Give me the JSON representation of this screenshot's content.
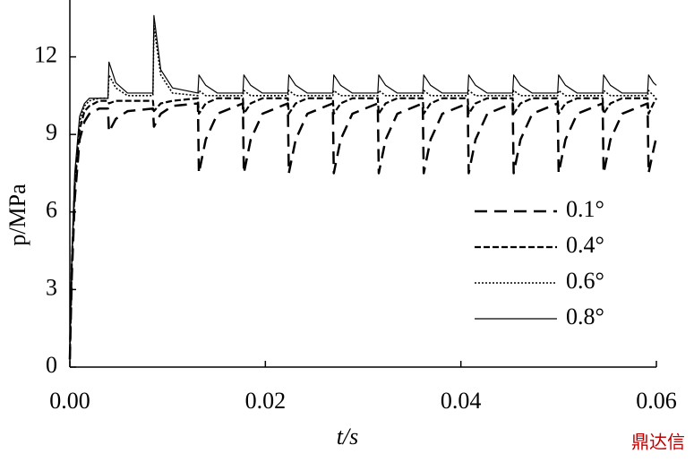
{
  "chart_data": {
    "type": "line",
    "xlabel": "t/s",
    "ylabel": "p/MPa",
    "watermark": "鼎达信",
    "xlim": [
      0,
      0.06
    ],
    "ylim": [
      0,
      14.2
    ],
    "xticks": [
      {
        "value": 0,
        "label": "0.00"
      },
      0.02,
      0.04,
      0.06
    ],
    "yticks": [
      0,
      3,
      6,
      9,
      12
    ],
    "legend": "right",
    "x": [
      0,
      0.0002,
      0.0005,
      0.001,
      0.0015,
      0.002,
      0.003,
      0.0039,
      0.004,
      0.0047,
      0.0059,
      0.0085,
      0.0086,
      0.0093,
      0.0105,
      0.0131,
      0.0132,
      0.0139,
      0.0151,
      0.0177,
      0.0178,
      0.0185,
      0.0197,
      0.0223,
      0.0224,
      0.0231,
      0.0243,
      0.0269,
      0.027,
      0.0277,
      0.0289,
      0.0315,
      0.0316,
      0.0323,
      0.0335,
      0.0361,
      0.0362,
      0.0369,
      0.0381,
      0.0407,
      0.0408,
      0.0415,
      0.0427,
      0.0453,
      0.0454,
      0.0461,
      0.0473,
      0.0499,
      0.05,
      0.0507,
      0.0519,
      0.0545,
      0.0546,
      0.0553,
      0.0565,
      0.0591,
      0.0592,
      0.0597,
      0.06
    ],
    "series": [
      {
        "name": "0.1°",
        "color": "#000000",
        "dash": "14,8",
        "width": 2.5,
        "values": [
          0.3,
          3.5,
          6.5,
          8.8,
          9.5,
          9.8,
          10.0,
          10.0,
          9.1,
          9.6,
          9.9,
          10.0,
          9.3,
          9.8,
          10.1,
          10.2,
          7.5,
          8.8,
          9.8,
          10.2,
          7.5,
          8.8,
          9.8,
          10.2,
          7.5,
          8.8,
          9.8,
          10.2,
          7.5,
          8.8,
          9.8,
          10.2,
          7.5,
          8.8,
          9.8,
          10.2,
          7.5,
          8.8,
          9.8,
          10.2,
          7.5,
          8.8,
          9.8,
          10.2,
          7.5,
          8.8,
          9.8,
          10.2,
          7.5,
          8.8,
          9.8,
          10.2,
          7.5,
          8.8,
          9.8,
          10.2,
          7.5,
          8.4,
          8.9
        ]
      },
      {
        "name": "0.4°",
        "color": "#000000",
        "dash": "7,3",
        "width": 2.2,
        "values": [
          0.3,
          4,
          7,
          9.2,
          9.9,
          10.1,
          10.3,
          10.3,
          10.2,
          10.3,
          10.3,
          10.3,
          9.9,
          10.2,
          10.3,
          10.4,
          9.8,
          10.2,
          10.4,
          10.4,
          9.8,
          10.2,
          10.4,
          10.4,
          9.8,
          10.2,
          10.4,
          10.4,
          9.8,
          10.2,
          10.4,
          10.4,
          9.8,
          10.2,
          10.4,
          10.4,
          9.8,
          10.2,
          10.4,
          10.4,
          9.8,
          10.2,
          10.4,
          10.4,
          9.8,
          10.2,
          10.4,
          10.4,
          9.8,
          10.2,
          10.4,
          10.4,
          9.8,
          10.2,
          10.4,
          10.4,
          9.8,
          10.2,
          10.4
        ]
      },
      {
        "name": "0.6°",
        "color": "#000000",
        "dash": "2,2",
        "width": 1.6,
        "values": [
          0.3,
          4,
          7.2,
          9.5,
          10.1,
          10.3,
          10.4,
          10.4,
          11.3,
          10.8,
          10.5,
          10.5,
          13.2,
          11.3,
          10.6,
          10.5,
          10.7,
          10.5,
          10.5,
          10.5,
          10.7,
          10.5,
          10.5,
          10.5,
          10.7,
          10.5,
          10.5,
          10.5,
          10.7,
          10.5,
          10.5,
          10.5,
          10.7,
          10.5,
          10.5,
          10.5,
          10.7,
          10.5,
          10.5,
          10.5,
          10.7,
          10.5,
          10.5,
          10.5,
          10.7,
          10.5,
          10.5,
          10.5,
          10.7,
          10.5,
          10.5,
          10.5,
          10.7,
          10.5,
          10.5,
          10.5,
          10.7,
          10.5,
          10.5
        ]
      },
      {
        "name": "0.8°",
        "color": "#000000",
        "width": 1.2,
        "values": [
          0.3,
          4.2,
          7.5,
          9.7,
          10.2,
          10.4,
          10.4,
          10.4,
          11.8,
          11.0,
          10.6,
          10.6,
          13.6,
          11.5,
          10.8,
          10.6,
          11.3,
          10.9,
          10.6,
          10.6,
          11.3,
          10.9,
          10.6,
          10.6,
          11.3,
          10.9,
          10.6,
          10.6,
          11.3,
          10.9,
          10.6,
          10.6,
          11.3,
          10.9,
          10.6,
          10.6,
          11.3,
          10.9,
          10.6,
          10.6,
          11.3,
          10.9,
          10.6,
          10.6,
          11.3,
          10.9,
          10.6,
          10.6,
          11.3,
          10.9,
          10.6,
          10.6,
          11.3,
          10.9,
          10.6,
          10.6,
          11.3,
          11.0,
          10.9
        ]
      }
    ]
  }
}
